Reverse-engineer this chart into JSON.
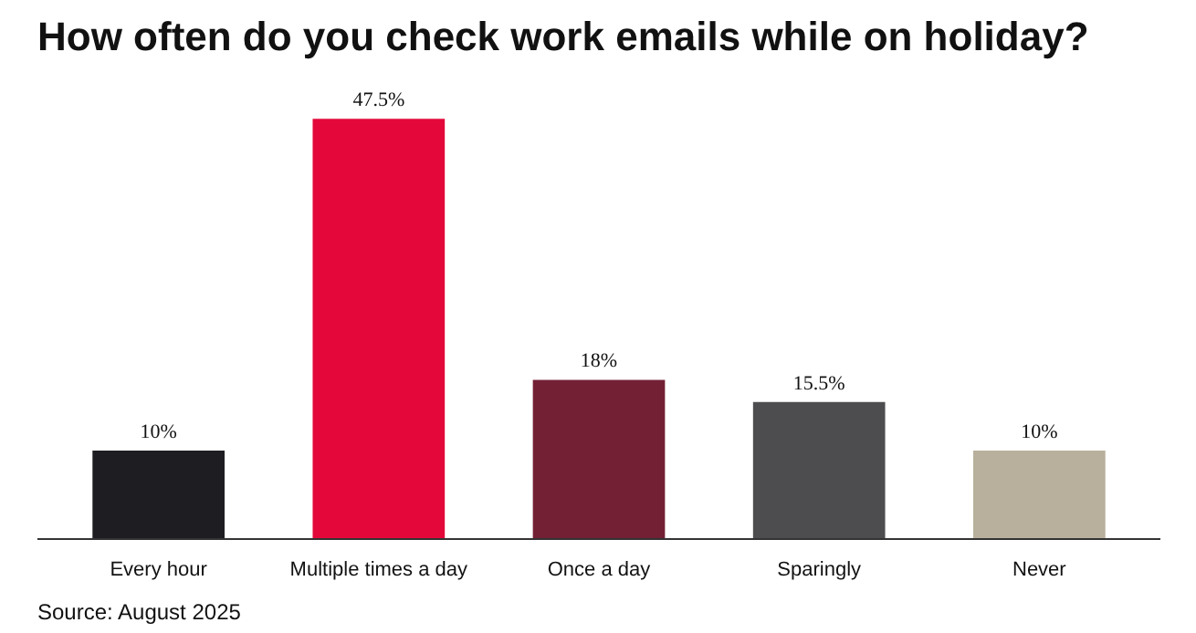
{
  "chart_data": {
    "type": "bar",
    "title": "How often do you check work emails while on holiday?",
    "categories": [
      "Every hour",
      "Multiple times a day",
      "Once a day",
      "Sparingly",
      "Never"
    ],
    "values": [
      10,
      47.5,
      18,
      15.5,
      10
    ],
    "colors": [
      "#1e1e22",
      "#e4083a",
      "#732034",
      "#4d4d4f",
      "#b8b09c"
    ],
    "value_labels": [
      "10%",
      "47.5%",
      "18%",
      "15.5%",
      "10%"
    ],
    "annotations": [
      "Source: August 2025"
    ],
    "grid": false
  }
}
